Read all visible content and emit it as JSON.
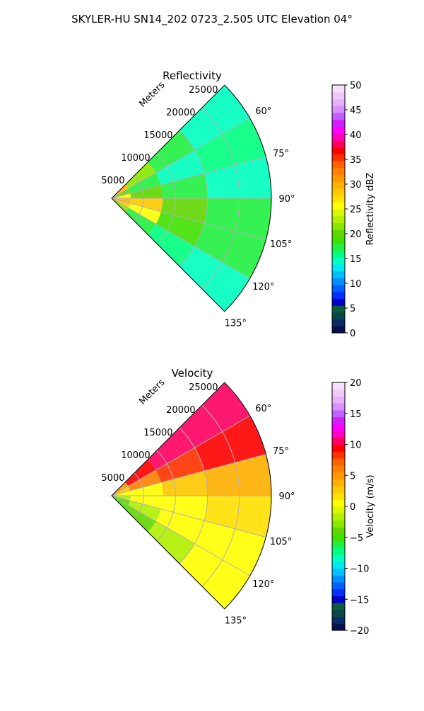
{
  "figure": {
    "title": "SKYLER-HU  SN14_202  0723_2.505 UTC Elevation 04°"
  },
  "chart_data": [
    {
      "type": "heatmap",
      "subtype": "polar-sector",
      "title": "Reflectivity",
      "r_axis_label": "Meters",
      "r_ticks": [
        5000,
        10000,
        15000,
        20000,
        25000
      ],
      "r_tick_labels": [
        "5000",
        "10000",
        "15000",
        "20000",
        "25000"
      ],
      "r_range": [
        0,
        25000
      ],
      "theta_range": [
        45,
        135
      ],
      "theta_ticks": [
        60,
        75,
        90,
        105,
        120,
        135
      ],
      "theta_tick_labels": [
        "60°",
        "75°",
        "90°",
        "105°",
        "120°",
        "135°"
      ],
      "grid": true,
      "colorbar": {
        "label": "Reflectivity dBZ",
        "range": [
          0,
          50
        ],
        "ticks": [
          0,
          5,
          10,
          15,
          20,
          25,
          30,
          35,
          40,
          45,
          50
        ],
        "tick_labels": [
          "0",
          "5",
          "10",
          "15",
          "20",
          "25",
          "30",
          "35",
          "40",
          "45",
          "50"
        ],
        "colors": [
          "#08104d",
          "#0c2b6b",
          "#0a4848",
          "#0d5b3a",
          "#0000c8",
          "#0030ff",
          "#0060ff",
          "#0090ff",
          "#00bfff",
          "#00e8f0",
          "#00ffc0",
          "#00ff80",
          "#20f040",
          "#40e000",
          "#60d800",
          "#88e800",
          "#b0f000",
          "#d8f800",
          "#ffff00",
          "#ffe000",
          "#ffc800",
          "#ffb000",
          "#ff9800",
          "#ff8000",
          "#ff6000",
          "#ff3000",
          "#ff0000",
          "#ff0060",
          "#ff00c0",
          "#ff00ff",
          "#d020ff",
          "#c060ff",
          "#d890ff",
          "#e8b0ff",
          "#f0c8f8",
          "#f8e0fc"
        ]
      },
      "field_description_cells": {
        "theta_bins": [
          45,
          60,
          75,
          90,
          105,
          120,
          135
        ],
        "r_bins": [
          0,
          3000,
          8000,
          15000,
          25000
        ],
        "values": [
          [
            30,
            20,
            25,
            30,
            28,
            22
          ],
          [
            22,
            18,
            20,
            28,
            25,
            18
          ],
          [
            18,
            15,
            17,
            20,
            19,
            16
          ],
          [
            15,
            16,
            15,
            17,
            18,
            15
          ]
        ]
      }
    },
    {
      "type": "heatmap",
      "subtype": "polar-sector",
      "title": "Velocity",
      "r_axis_label": "Meters",
      "r_ticks": [
        5000,
        10000,
        15000,
        20000,
        25000
      ],
      "r_tick_labels": [
        "5000",
        "10000",
        "15000",
        "20000",
        "25000"
      ],
      "r_range": [
        0,
        25000
      ],
      "theta_range": [
        45,
        135
      ],
      "theta_ticks": [
        60,
        75,
        90,
        105,
        120,
        135
      ],
      "theta_tick_labels": [
        "60°",
        "75°",
        "90°",
        "105°",
        "120°",
        "135°"
      ],
      "grid": true,
      "colorbar": {
        "label": "Velocity (m/s)",
        "range": [
          -20,
          20
        ],
        "ticks": [
          -20,
          -15,
          -10,
          -5,
          0,
          5,
          10,
          15,
          20
        ],
        "tick_labels": [
          "−20",
          "−15",
          "−10",
          "−5",
          "0",
          "5",
          "10",
          "15",
          "20"
        ],
        "colors": [
          "#08104d",
          "#0c2b6b",
          "#0a4848",
          "#0d5b3a",
          "#0000c8",
          "#0030ff",
          "#0060ff",
          "#0090ff",
          "#00bfff",
          "#00e8f0",
          "#00ffc0",
          "#00ff80",
          "#20f040",
          "#40e000",
          "#60d800",
          "#88e800",
          "#b0f000",
          "#d8f800",
          "#ffff00",
          "#ffe000",
          "#ffc800",
          "#ffb000",
          "#ff9800",
          "#ff8000",
          "#ff6000",
          "#ff3000",
          "#ff0000",
          "#ff0060",
          "#ff00c0",
          "#ff00ff",
          "#d020ff",
          "#c060ff",
          "#d890ff",
          "#e8b0ff",
          "#f0c8f8",
          "#f8e0fc"
        ]
      },
      "field_description_cells": {
        "theta_bins": [
          45,
          60,
          75,
          90,
          105,
          120,
          135
        ],
        "r_bins": [
          0,
          3000,
          8000,
          15000,
          25000
        ],
        "values": [
          [
            5,
            3,
            0,
            -2,
            -4,
            -5
          ],
          [
            9,
            6,
            1,
            0,
            -2,
            -4
          ],
          [
            10,
            8,
            3,
            1,
            0,
            -2
          ],
          [
            10,
            9,
            4,
            2,
            1,
            0
          ]
        ]
      }
    }
  ]
}
